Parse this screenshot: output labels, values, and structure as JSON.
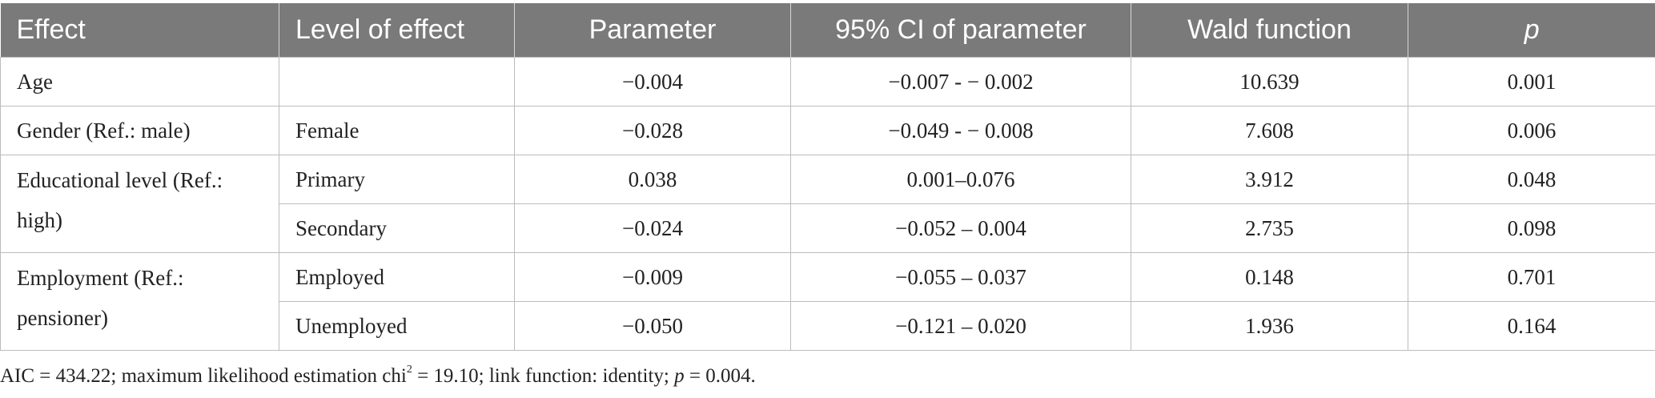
{
  "table": {
    "headers": {
      "effect": "Effect",
      "level": "Level of effect",
      "parameter": "Parameter",
      "ci": "95% CI of parameter",
      "wald": "Wald function",
      "p": "p"
    },
    "rows": [
      {
        "effect": "Age",
        "level": "",
        "parameter": "−0.004",
        "ci": "−0.007 - − 0.002",
        "wald": "10.639",
        "p": "0.001"
      },
      {
        "effect": "Gender (Ref.: male)",
        "level": "Female",
        "parameter": "−0.028",
        "ci": "−0.049 - − 0.008",
        "wald": "7.608",
        "p": "0.006"
      },
      {
        "effect": "Educational level (Ref.: high)",
        "level": "Primary",
        "parameter": "0.038",
        "ci": "0.001–0.076",
        "wald": "3.912",
        "p": "0.048"
      },
      {
        "effect": "",
        "level": "Secondary",
        "parameter": "−0.024",
        "ci": "−0.052 – 0.004",
        "wald": "2.735",
        "p": "0.098"
      },
      {
        "effect": "Employment (Ref.: pensioner)",
        "level": "Employed",
        "parameter": "−0.009",
        "ci": "−0.055 – 0.037",
        "wald": "0.148",
        "p": "0.701"
      },
      {
        "effect": "",
        "level": "Unemployed",
        "parameter": "−0.050",
        "ci": "−0.121 – 0.020",
        "wald": "1.936",
        "p": "0.164"
      }
    ]
  },
  "footnote": {
    "part1": "AIC = 434.22; maximum likelihood estimation chi",
    "sup": "2",
    "part2": " = 19.10; link function: identity; ",
    "p_italic": "p",
    "part3": " = 0.004."
  }
}
